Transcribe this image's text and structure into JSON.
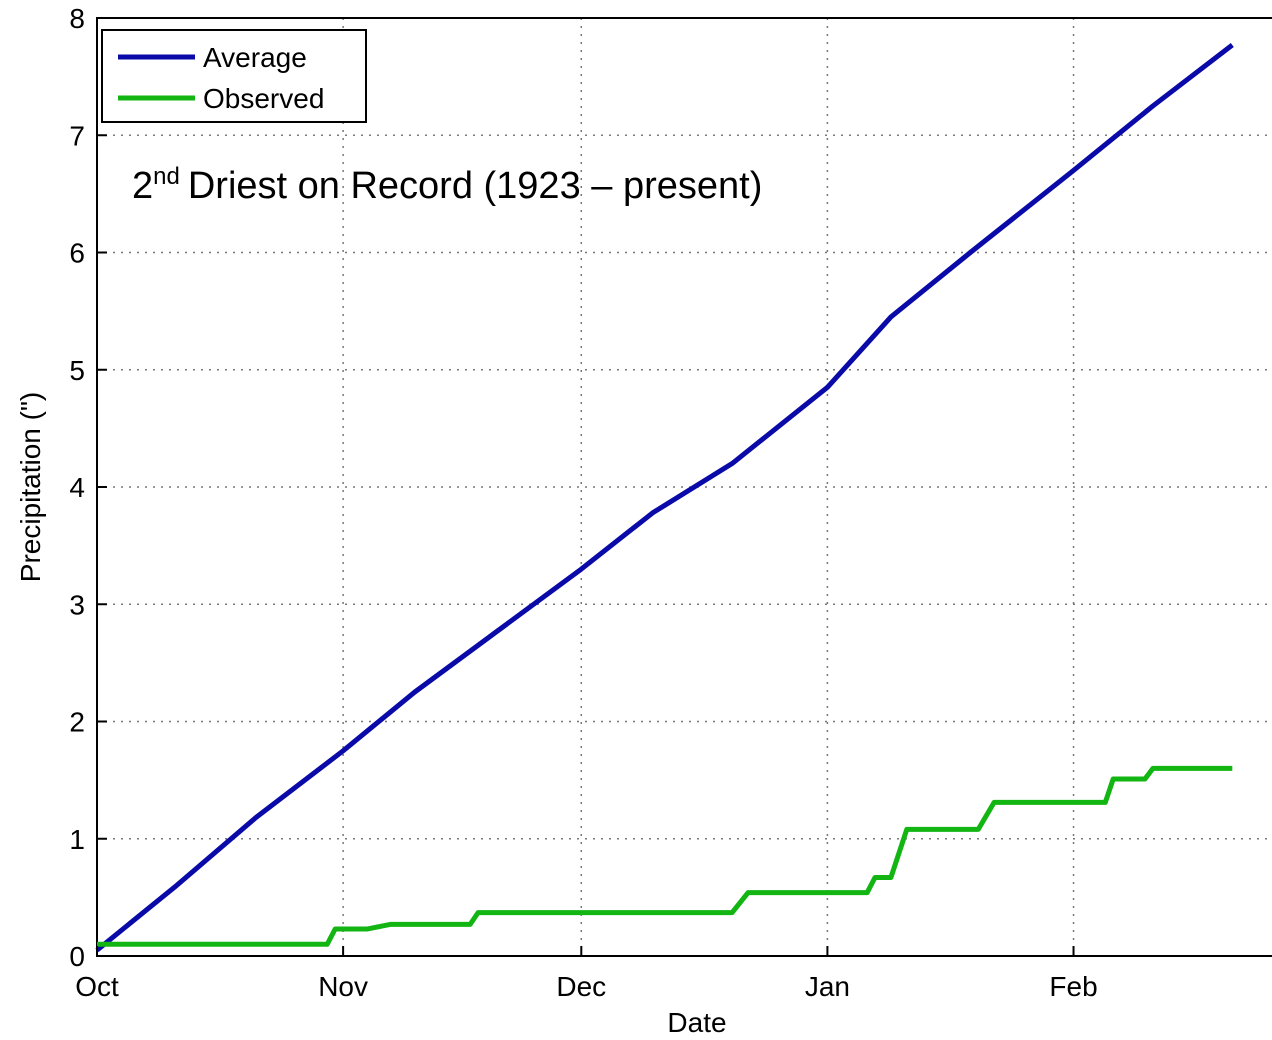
{
  "chart_data": {
    "type": "line",
    "xlabel": "Date",
    "ylabel": "Precipitation (\")",
    "annotation": {
      "number": "2",
      "suffix": "nd",
      "text": "Driest on Record (1923 – present)"
    },
    "xlim": [
      0,
      148
    ],
    "xticks": [
      {
        "value": 0,
        "label": "Oct"
      },
      {
        "value": 31,
        "label": "Nov"
      },
      {
        "value": 61,
        "label": "Dec"
      },
      {
        "value": 92,
        "label": "Jan"
      },
      {
        "value": 123,
        "label": "Feb"
      }
    ],
    "ylim": [
      0,
      8
    ],
    "yticks": [
      0,
      1,
      2,
      3,
      4,
      5,
      6,
      7,
      8
    ],
    "grid": true,
    "legend": "upper left",
    "series": [
      {
        "name": "Average",
        "color": "#0a0aa8",
        "x": [
          0,
          10,
          20,
          31,
          40,
          50,
          61,
          70,
          80,
          92,
          100,
          110,
          123,
          133,
          143
        ],
        "values": [
          0.05,
          0.6,
          1.18,
          1.75,
          2.25,
          2.75,
          3.3,
          3.78,
          4.2,
          4.85,
          5.45,
          6.0,
          6.7,
          7.25,
          7.77
        ]
      },
      {
        "name": "Observed",
        "color": "#12b512",
        "x": [
          0,
          29,
          30,
          34,
          37,
          47,
          48,
          80,
          82,
          97,
          98,
          100,
          102,
          111,
          113,
          127,
          128,
          132,
          133,
          143
        ],
        "values": [
          0.1,
          0.1,
          0.23,
          0.23,
          0.27,
          0.27,
          0.37,
          0.37,
          0.54,
          0.54,
          0.67,
          0.67,
          1.08,
          1.08,
          1.31,
          1.31,
          1.51,
          1.51,
          1.6,
          1.6
        ]
      }
    ]
  }
}
